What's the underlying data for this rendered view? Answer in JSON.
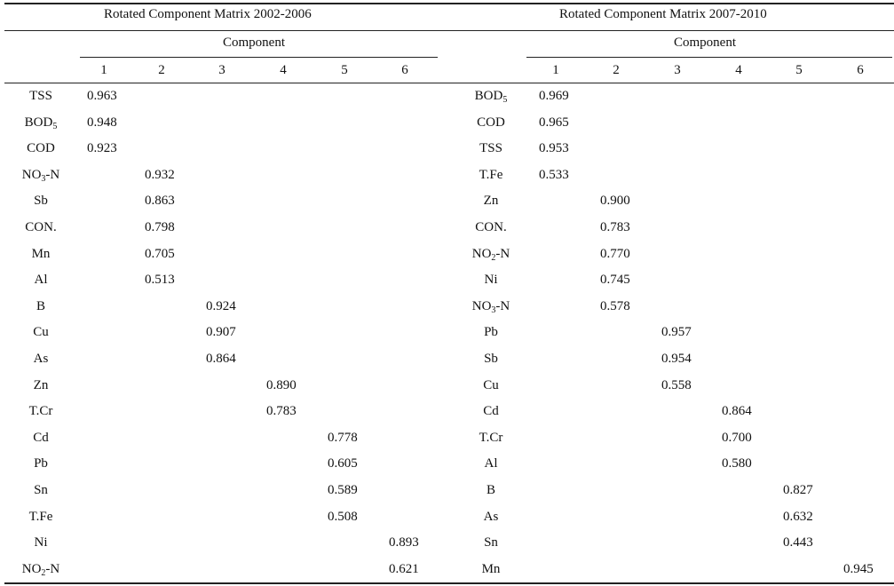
{
  "left": {
    "title": "Rotated Component Matrix 2002-2006",
    "component_label": "Component",
    "columns": [
      "1",
      "2",
      "3",
      "4",
      "5",
      "6"
    ],
    "rows": [
      {
        "label": "TSS",
        "sub": "",
        "suffix": "",
        "col": 1,
        "value": "0.963"
      },
      {
        "label": "BOD",
        "sub": "5",
        "suffix": "",
        "col": 1,
        "value": "0.948"
      },
      {
        "label": "COD",
        "sub": "",
        "suffix": "",
        "col": 1,
        "value": "0.923"
      },
      {
        "label": "NO",
        "sub": "3",
        "suffix": "-N",
        "col": 2,
        "value": "0.932"
      },
      {
        "label": "Sb",
        "sub": "",
        "suffix": "",
        "col": 2,
        "value": "0.863"
      },
      {
        "label": "CON.",
        "sub": "",
        "suffix": "",
        "col": 2,
        "value": "0.798"
      },
      {
        "label": "Mn",
        "sub": "",
        "suffix": "",
        "col": 2,
        "value": "0.705"
      },
      {
        "label": "Al",
        "sub": "",
        "suffix": "",
        "col": 2,
        "value": "0.513"
      },
      {
        "label": "B",
        "sub": "",
        "suffix": "",
        "col": 3,
        "value": "0.924"
      },
      {
        "label": "Cu",
        "sub": "",
        "suffix": "",
        "col": 3,
        "value": "0.907"
      },
      {
        "label": "As",
        "sub": "",
        "suffix": "",
        "col": 3,
        "value": "0.864"
      },
      {
        "label": "Zn",
        "sub": "",
        "suffix": "",
        "col": 4,
        "value": "0.890"
      },
      {
        "label": "T.Cr",
        "sub": "",
        "suffix": "",
        "col": 4,
        "value": "0.783"
      },
      {
        "label": "Cd",
        "sub": "",
        "suffix": "",
        "col": 5,
        "value": "0.778"
      },
      {
        "label": "Pb",
        "sub": "",
        "suffix": "",
        "col": 5,
        "value": "0.605"
      },
      {
        "label": "Sn",
        "sub": "",
        "suffix": "",
        "col": 5,
        "value": "0.589"
      },
      {
        "label": "T.Fe",
        "sub": "",
        "suffix": "",
        "col": 5,
        "value": "0.508"
      },
      {
        "label": "Ni",
        "sub": "",
        "suffix": "",
        "col": 6,
        "value": "0.893"
      },
      {
        "label": "NO",
        "sub": "2",
        "suffix": "-N",
        "col": 6,
        "value": "0.621"
      }
    ]
  },
  "right": {
    "title": "Rotated Component Matrix 2007-2010",
    "component_label": "Component",
    "columns": [
      "1",
      "2",
      "3",
      "4",
      "5",
      "6"
    ],
    "rows": [
      {
        "label": "BOD",
        "sub": "5",
        "suffix": "",
        "col": 1,
        "value": "0.969"
      },
      {
        "label": "COD",
        "sub": "",
        "suffix": "",
        "col": 1,
        "value": "0.965"
      },
      {
        "label": "TSS",
        "sub": "",
        "suffix": "",
        "col": 1,
        "value": "0.953"
      },
      {
        "label": "T.Fe",
        "sub": "",
        "suffix": "",
        "col": 1,
        "value": "0.533"
      },
      {
        "label": "Zn",
        "sub": "",
        "suffix": "",
        "col": 2,
        "value": "0.900"
      },
      {
        "label": "CON.",
        "sub": "",
        "suffix": "",
        "col": 2,
        "value": "0.783"
      },
      {
        "label": "NO",
        "sub": "2",
        "suffix": "-N",
        "col": 2,
        "value": "0.770"
      },
      {
        "label": "Ni",
        "sub": "",
        "suffix": "",
        "col": 2,
        "value": "0.745"
      },
      {
        "label": "NO",
        "sub": "3",
        "suffix": "-N",
        "col": 2,
        "value": "0.578"
      },
      {
        "label": "Pb",
        "sub": "",
        "suffix": "",
        "col": 3,
        "value": "0.957"
      },
      {
        "label": "Sb",
        "sub": "",
        "suffix": "",
        "col": 3,
        "value": "0.954"
      },
      {
        "label": "Cu",
        "sub": "",
        "suffix": "",
        "col": 3,
        "value": "0.558"
      },
      {
        "label": "Cd",
        "sub": "",
        "suffix": "",
        "col": 4,
        "value": "0.864"
      },
      {
        "label": "T.Cr",
        "sub": "",
        "suffix": "",
        "col": 4,
        "value": "0.700"
      },
      {
        "label": "Al",
        "sub": "",
        "suffix": "",
        "col": 4,
        "value": "0.580"
      },
      {
        "label": "B",
        "sub": "",
        "suffix": "",
        "col": 5,
        "value": "0.827"
      },
      {
        "label": "As",
        "sub": "",
        "suffix": "",
        "col": 5,
        "value": "0.632"
      },
      {
        "label": "Sn",
        "sub": "",
        "suffix": "",
        "col": 5,
        "value": "0.443"
      },
      {
        "label": "Mn",
        "sub": "",
        "suffix": "",
        "col": 6,
        "value": "0.945"
      }
    ]
  }
}
